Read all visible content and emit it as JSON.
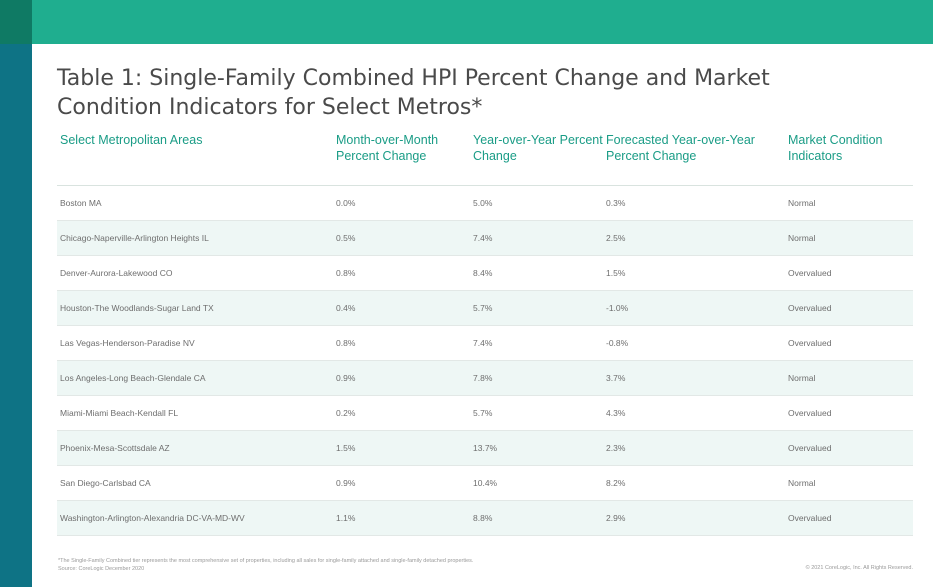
{
  "colors": {
    "header_band": "#1fae8f",
    "left_bar": "#0e7385",
    "header_text": "#1a9c86",
    "row_stripe": "#eef7f5"
  },
  "title": "Table 1: Single-Family Combined HPI Percent Change and Market Condition Indicators for Select Metros*",
  "table": {
    "columns": [
      "Select Metropolitan Areas",
      "Month-over-Month Percent Change",
      "Year-over-Year Percent Change",
      "Forecasted Year-over-Year Percent Change",
      "Market Condition Indicators"
    ],
    "rows": [
      {
        "area": "Boston MA",
        "mom": "0.0%",
        "yoy": "5.0%",
        "forecast": "0.3%",
        "indicator": "Normal"
      },
      {
        "area": "Chicago-Naperville-Arlington Heights IL",
        "mom": "0.5%",
        "yoy": "7.4%",
        "forecast": "2.5%",
        "indicator": "Normal"
      },
      {
        "area": "Denver-Aurora-Lakewood CO",
        "mom": "0.8%",
        "yoy": "8.4%",
        "forecast": "1.5%",
        "indicator": "Overvalued"
      },
      {
        "area": "Houston-The Woodlands-Sugar Land TX",
        "mom": "0.4%",
        "yoy": "5.7%",
        "forecast": "-1.0%",
        "indicator": "Overvalued"
      },
      {
        "area": "Las Vegas-Henderson-Paradise NV",
        "mom": "0.8%",
        "yoy": "7.4%",
        "forecast": "-0.8%",
        "indicator": "Overvalued"
      },
      {
        "area": "Los Angeles-Long Beach-Glendale CA",
        "mom": "0.9%",
        "yoy": "7.8%",
        "forecast": "3.7%",
        "indicator": "Normal"
      },
      {
        "area": "Miami-Miami Beach-Kendall FL",
        "mom": "0.2%",
        "yoy": "5.7%",
        "forecast": "4.3%",
        "indicator": "Overvalued"
      },
      {
        "area": "Phoenix-Mesa-Scottsdale AZ",
        "mom": "1.5%",
        "yoy": "13.7%",
        "forecast": "2.3%",
        "indicator": "Overvalued"
      },
      {
        "area": "San Diego-Carlsbad CA",
        "mom": "0.9%",
        "yoy": "10.4%",
        "forecast": "8.2%",
        "indicator": "Normal"
      },
      {
        "area": "Washington-Arlington-Alexandria DC-VA-MD-WV",
        "mom": "1.1%",
        "yoy": "8.8%",
        "forecast": "2.9%",
        "indicator": "Overvalued"
      }
    ]
  },
  "footnote": {
    "line1": "*The Single-Family Combined tier represents the most comprehensive set of properties, including all sales for single-family attached and single-family detached properties.",
    "line2": "Source: CoreLogic December 2020"
  },
  "copyright": "© 2021 CoreLogic, Inc. All Rights Reserved."
}
